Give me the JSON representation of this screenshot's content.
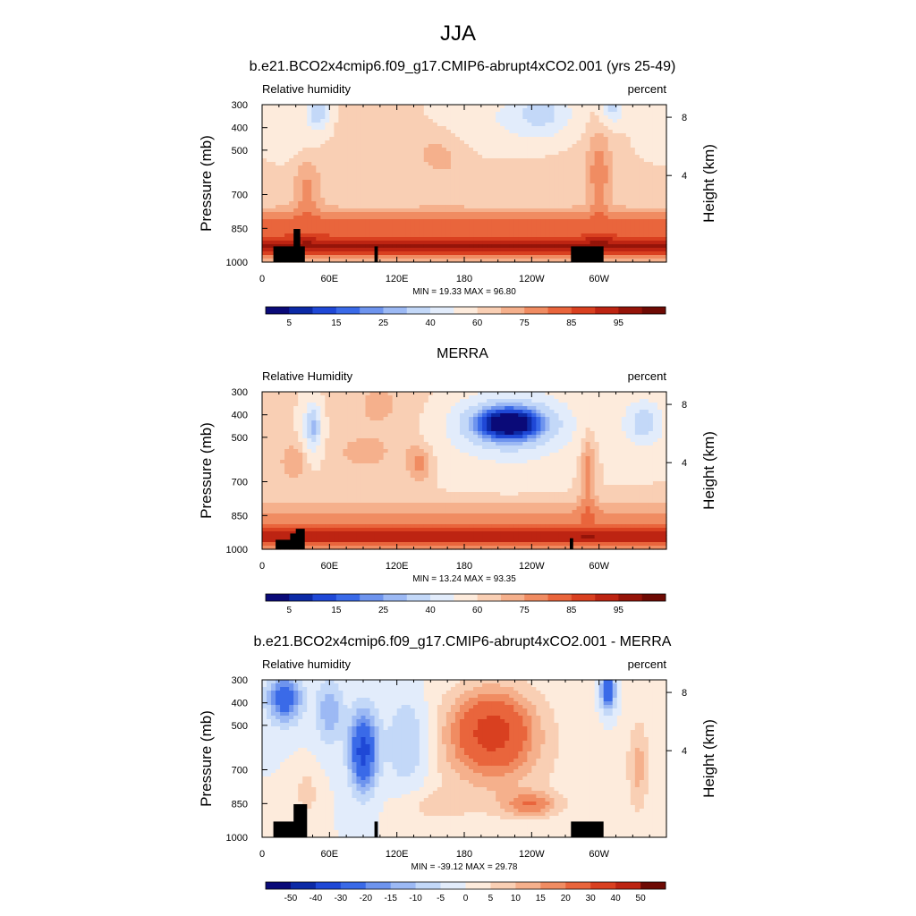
{
  "page_title": "JJA",
  "chart_data": [
    {
      "type": "heatmap",
      "title": "b.e21.BCO2x4cmip6.f09_g17.CMIP6-abrupt4xCO2.001 (yrs 25-49)",
      "left_label": "Relative humidity",
      "right_label": "percent",
      "ylabel": "Pressure (mb)",
      "y2label": "Height (km)",
      "x_ticks": [
        "0",
        "60E",
        "120E",
        "180",
        "120W",
        "60W"
      ],
      "y_ticks": [
        "300",
        "400",
        "500",
        "700",
        "850",
        "1000"
      ],
      "y2_ticks": [
        "8",
        "4"
      ],
      "stats": "MIN =  19.33  MAX =  96.80",
      "colorbar_labels": [
        "5",
        "15",
        "25",
        "40",
        "60",
        "75",
        "85",
        "95"
      ],
      "colorbar_colors": [
        "#0a0a78",
        "#0c2aa6",
        "#1f48d6",
        "#3a6ae8",
        "#6e94ee",
        "#9cb9f4",
        "#c3d8f8",
        "#e2ecfb",
        "#fdebdc",
        "#f9cfb4",
        "#f5b08c",
        "#f08c62",
        "#e9653c",
        "#d94020",
        "#bd2412",
        "#951409",
        "#6e0a04"
      ],
      "ylim": [
        1000,
        300
      ],
      "field": "model"
    },
    {
      "type": "heatmap",
      "title": "MERRA",
      "left_label": "Relative Humidity",
      "right_label": "percent",
      "ylabel": "Pressure (mb)",
      "y2label": "Height (km)",
      "x_ticks": [
        "0",
        "60E",
        "120E",
        "180",
        "120W",
        "60W"
      ],
      "y_ticks": [
        "300",
        "400",
        "500",
        "700",
        "850",
        "1000"
      ],
      "y2_ticks": [
        "8",
        "4"
      ],
      "stats": "MIN =  13.24  MAX =  93.35",
      "colorbar_labels": [
        "5",
        "15",
        "25",
        "40",
        "60",
        "75",
        "85",
        "95"
      ],
      "colorbar_colors": [
        "#0a0a78",
        "#0c2aa6",
        "#1f48d6",
        "#3a6ae8",
        "#6e94ee",
        "#9cb9f4",
        "#c3d8f8",
        "#e2ecfb",
        "#fdebdc",
        "#f9cfb4",
        "#f5b08c",
        "#f08c62",
        "#e9653c",
        "#d94020",
        "#bd2412",
        "#951409",
        "#6e0a04"
      ],
      "ylim": [
        1000,
        300
      ],
      "field": "obs"
    },
    {
      "type": "heatmap",
      "title": "b.e21.BCO2x4cmip6.f09_g17.CMIP6-abrupt4xCO2.001 - MERRA",
      "left_label": "Relative humidity",
      "right_label": "percent",
      "ylabel": "Pressure (mb)",
      "y2label": "Height (km)",
      "x_ticks": [
        "0",
        "60E",
        "120E",
        "180",
        "120W",
        "60W"
      ],
      "y_ticks": [
        "300",
        "400",
        "500",
        "700",
        "850",
        "1000"
      ],
      "y2_ticks": [
        "8",
        "4"
      ],
      "stats": "MIN = -39.12  MAX =  29.78",
      "colorbar_labels": [
        "-50",
        "-40",
        "-30",
        "-20",
        "-15",
        "-10",
        "-5",
        "0",
        "5",
        "10",
        "15",
        "20",
        "30",
        "40",
        "50"
      ],
      "colorbar_colors": [
        "#0a0a78",
        "#0c2aa6",
        "#1f48d6",
        "#3a6ae8",
        "#6e94ee",
        "#9cb9f4",
        "#c3d8f8",
        "#e2ecfb",
        "#fdebdc",
        "#f9cfb4",
        "#f5b08c",
        "#f08c62",
        "#e9653c",
        "#d94020",
        "#bd2412",
        "#6e0a04"
      ],
      "ylim": [
        1000,
        300
      ],
      "field": "diff"
    }
  ]
}
